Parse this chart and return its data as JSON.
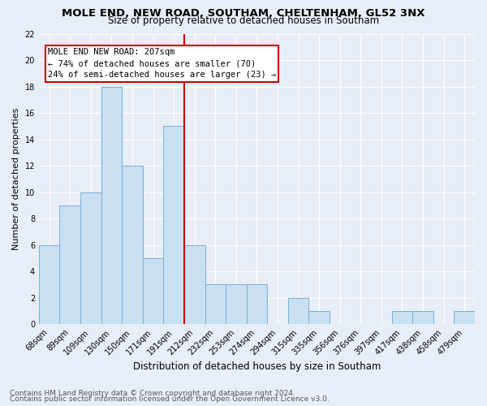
{
  "title": "MOLE END, NEW ROAD, SOUTHAM, CHELTENHAM, GL52 3NX",
  "subtitle": "Size of property relative to detached houses in Southam",
  "xlabel": "Distribution of detached houses by size in Southam",
  "ylabel": "Number of detached properties",
  "categories": [
    "68sqm",
    "89sqm",
    "109sqm",
    "130sqm",
    "150sqm",
    "171sqm",
    "191sqm",
    "212sqm",
    "232sqm",
    "253sqm",
    "274sqm",
    "294sqm",
    "315sqm",
    "335sqm",
    "356sqm",
    "376sqm",
    "397sqm",
    "417sqm",
    "438sqm",
    "458sqm",
    "479sqm"
  ],
  "values": [
    6,
    9,
    10,
    18,
    12,
    5,
    15,
    6,
    3,
    3,
    3,
    0,
    2,
    1,
    0,
    0,
    0,
    1,
    1,
    0,
    1
  ],
  "bar_color": "#c9dff2",
  "bar_edge_color": "#7ab0d4",
  "vline_index": 7,
  "annotation_line1": "MOLE END NEW ROAD: 207sqm",
  "annotation_line2": "← 74% of detached houses are smaller (70)",
  "annotation_line3": "24% of semi-detached houses are larger (23) →",
  "annotation_box_color": "#ffffff",
  "annotation_box_edge": "#cc0000",
  "vline_color": "#cc0000",
  "footer1": "Contains HM Land Registry data © Crown copyright and database right 2024.",
  "footer2": "Contains public sector information licensed under the Open Government Licence v3.0.",
  "ylim": [
    0,
    22
  ],
  "yticks": [
    0,
    2,
    4,
    6,
    8,
    10,
    12,
    14,
    16,
    18,
    20,
    22
  ],
  "bg_color": "#e8eef7",
  "plot_bg_color": "#e8eef7",
  "title_fontsize": 9.5,
  "subtitle_fontsize": 8.5,
  "xlabel_fontsize": 8.5,
  "ylabel_fontsize": 8,
  "tick_fontsize": 7,
  "annotation_fontsize": 7.5,
  "footer_fontsize": 6.5
}
